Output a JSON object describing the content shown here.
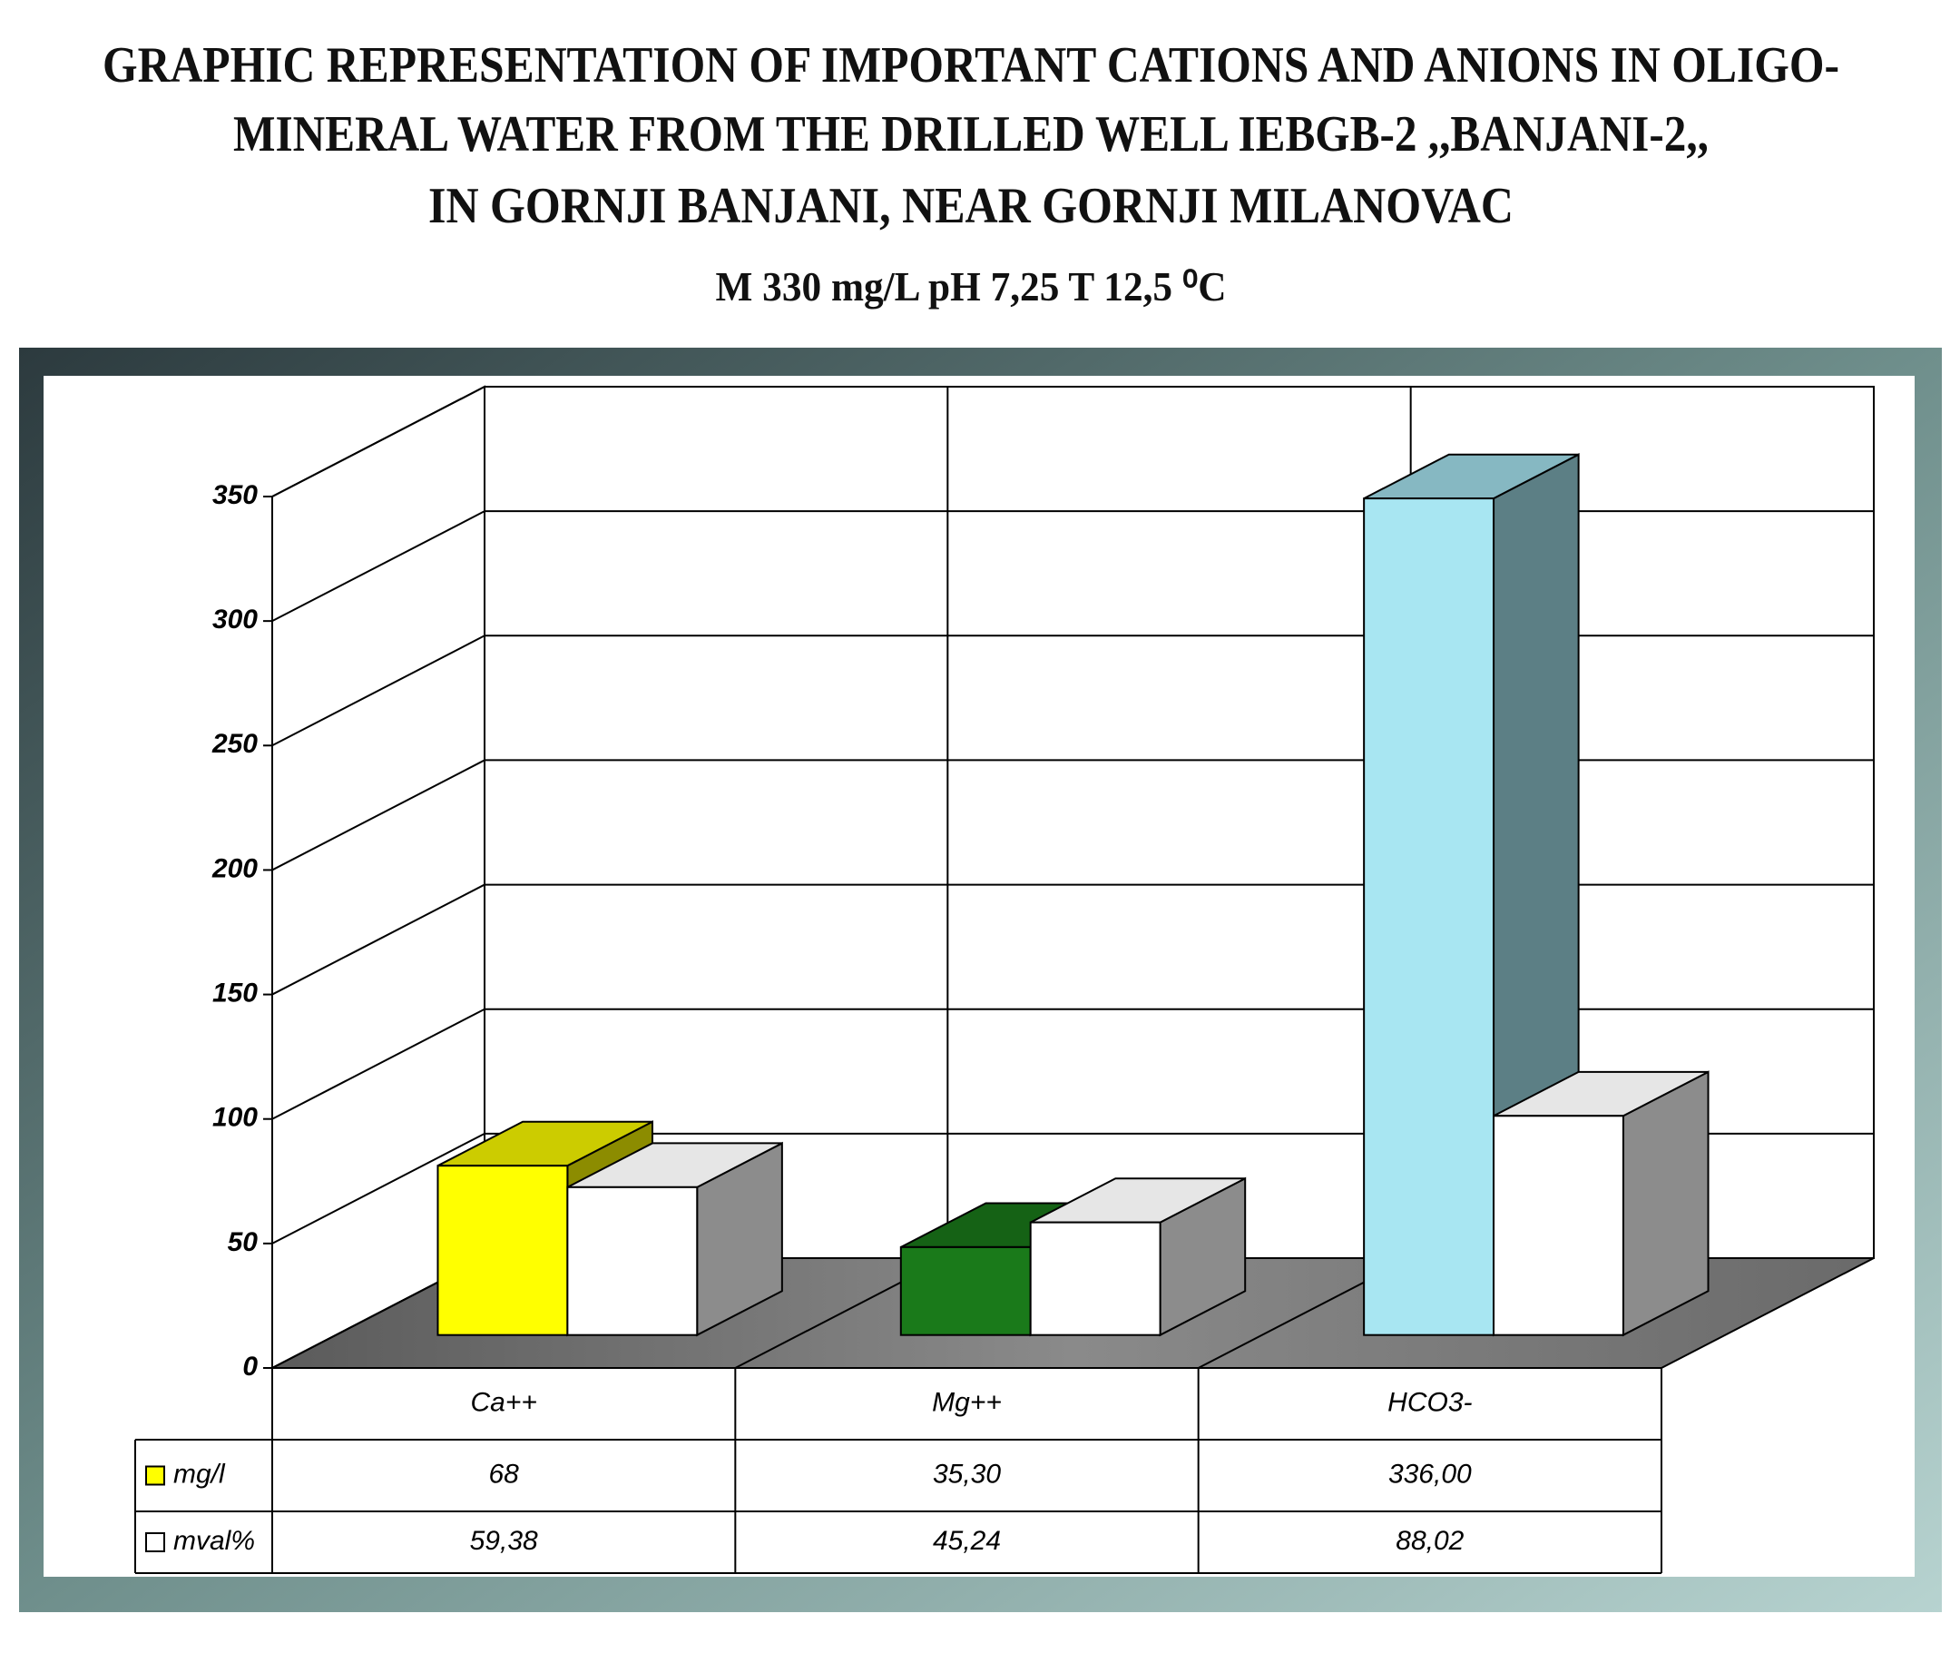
{
  "chart_data": {
    "type": "bar3d",
    "title": [
      "GRAPHIC REPRESENTATION OF IMPORTANT CATIONS AND ANIONS IN OLIGO-",
      "MINERAL WATER FROM THE DRILLED WELL IEBGB-2 ,,BANJANI-2,,",
      "IN  GORNJI BANJANI, NEAR  GORNJI MILANOVAC"
    ],
    "subtitle": "M 330 mg/L pH 7,25 T 12,5 ⁰C",
    "categories": [
      "Ca++",
      "Mg++",
      "HCO3-"
    ],
    "series": [
      {
        "name": "mg/l",
        "color": "#ffff00",
        "bar_colors": [
          "#ffff00",
          "#1a7a1a",
          "#a8e6f2"
        ],
        "values": [
          68,
          35.3,
          336.0
        ],
        "value_labels": [
          "68",
          "35,30",
          "336,00"
        ]
      },
      {
        "name": "mval%",
        "color": "#ffffff",
        "values": [
          59.38,
          45.24,
          88.02
        ],
        "value_labels": [
          "59,38",
          "45,24",
          "88,02"
        ]
      }
    ],
    "ylim": [
      0,
      350
    ],
    "yticks": [
      0,
      50,
      100,
      150,
      200,
      250,
      300,
      350
    ],
    "grid": true
  }
}
